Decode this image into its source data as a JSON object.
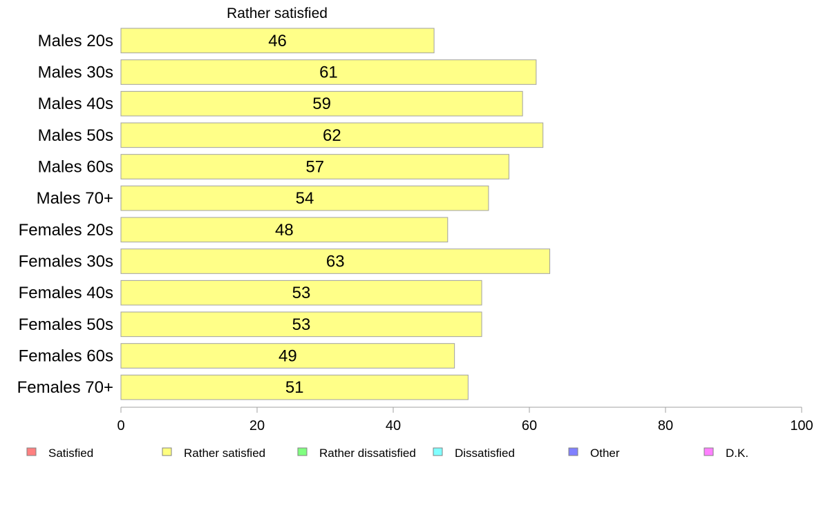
{
  "chart_data": {
    "type": "bar",
    "orientation": "horizontal",
    "title": "Rather satisfied",
    "categories": [
      "Males 20s",
      "Males 30s",
      "Males 40s",
      "Males 50s",
      "Males 60s",
      "Males 70+",
      "Females 20s",
      "Females 30s",
      "Females 40s",
      "Females 50s",
      "Females 60s",
      "Females 70+"
    ],
    "series": [
      {
        "name": "Rather satisfied",
        "values": [
          46,
          61,
          59,
          62,
          57,
          54,
          48,
          63,
          53,
          53,
          49,
          51
        ]
      }
    ],
    "value_labels": [
      "46",
      "61",
      "59",
      "62",
      "57",
      "54",
      "48",
      "63",
      "53",
      "53",
      "49",
      "51"
    ],
    "xlim": [
      0,
      100
    ],
    "x_ticks": [
      0,
      20,
      40,
      60,
      80,
      100
    ],
    "x_tick_labels": [
      "0",
      "20",
      "40",
      "60",
      "80",
      "100"
    ],
    "grid": false,
    "bar_color": "#ffff88",
    "bar_stroke": "#a0a0a0",
    "legend_position": "bottom",
    "legend": [
      {
        "label": "Satisfied",
        "color": "#ff8080"
      },
      {
        "label": "Rather satisfied",
        "color": "#ffff80"
      },
      {
        "label": "Rather dissatisfied",
        "color": "#80ff80"
      },
      {
        "label": "Dissatisfied",
        "color": "#80ffff"
      },
      {
        "label": "Other",
        "color": "#8080ff"
      },
      {
        "label": "D.K.",
        "color": "#ff80ff"
      }
    ]
  }
}
